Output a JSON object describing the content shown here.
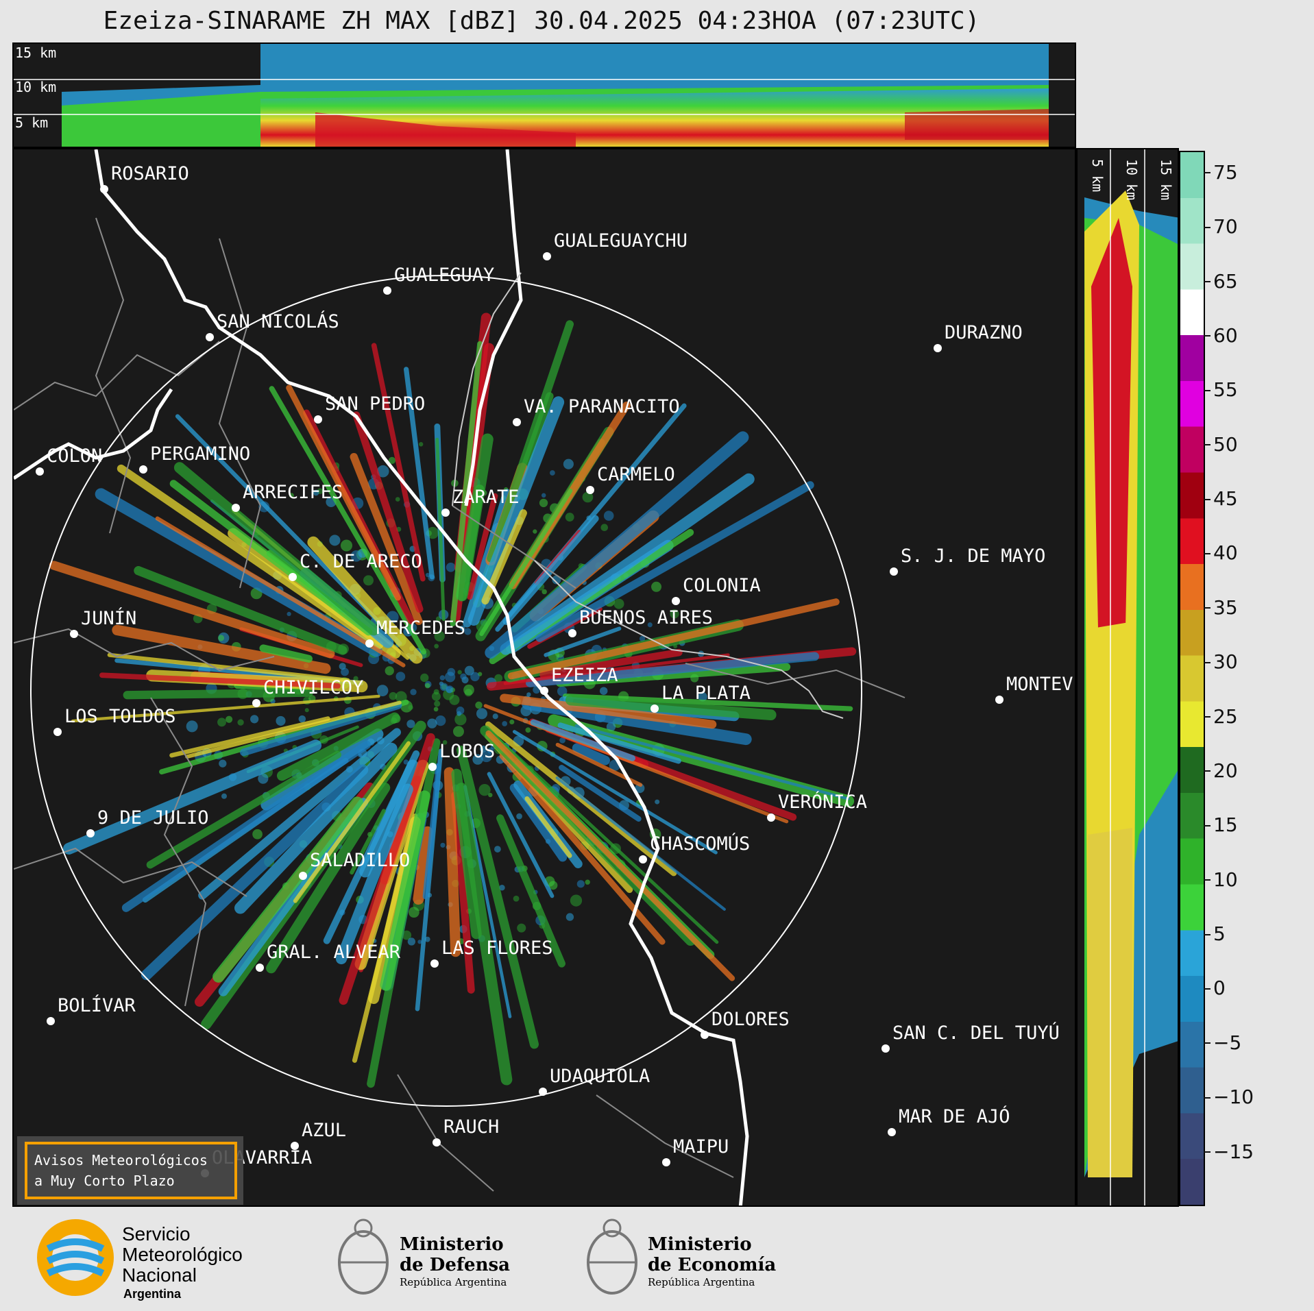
{
  "title": "Ezeiza-SINARAME ZH MAX [dBZ] 30.04.2025 04:23HOA (07:23UTC)",
  "top_panel": {
    "heights": [
      "15 km",
      "10 km",
      "5 km"
    ]
  },
  "side_panel": {
    "heights": [
      "5 km",
      "10 km",
      "15 km"
    ]
  },
  "colorbar": {
    "ticks": [
      "75",
      "70",
      "65",
      "60",
      "55",
      "50",
      "45",
      "40",
      "35",
      "30",
      "25",
      "20",
      "15",
      "10",
      "5",
      "0",
      "−5",
      "−10",
      "−15"
    ],
    "range": [
      -20,
      77
    ]
  },
  "cities": [
    {
      "name": "ROSARIO"
    },
    {
      "name": "GUALEGUAYCHU"
    },
    {
      "name": "GUALEGUAY"
    },
    {
      "name": "SAN NICOLÁS"
    },
    {
      "name": "DURAZNO"
    },
    {
      "name": "SAN PEDRO"
    },
    {
      "name": "VA. PARANACITO"
    },
    {
      "name": "COLON"
    },
    {
      "name": "PERGAMINO"
    },
    {
      "name": "CARMELO"
    },
    {
      "name": "ARRECIFES"
    },
    {
      "name": "ZÁRATE"
    },
    {
      "name": "C. DE ARECO"
    },
    {
      "name": "S. J. DE MAYO"
    },
    {
      "name": "COLONIA"
    },
    {
      "name": "JUNÍN"
    },
    {
      "name": "BUENOS AIRES"
    },
    {
      "name": "MERCEDES"
    },
    {
      "name": "EZEIZA"
    },
    {
      "name": "CHIVILCOY"
    },
    {
      "name": "MONTEV"
    },
    {
      "name": "LA PLATA"
    },
    {
      "name": "LOS TOLDOS"
    },
    {
      "name": "LOBOS"
    },
    {
      "name": "VERÓNICA"
    },
    {
      "name": "9 DE JULIO"
    },
    {
      "name": "CHASCOMÚS"
    },
    {
      "name": "SALADILLO"
    },
    {
      "name": "GRAL. ALVEAR"
    },
    {
      "name": "LAS FLORES"
    },
    {
      "name": "BOLÍVAR"
    },
    {
      "name": "DOLORES"
    },
    {
      "name": "SAN C. DEL TUYÚ"
    },
    {
      "name": "UDAQUIOLA"
    },
    {
      "name": "AZUL"
    },
    {
      "name": "RAUCH"
    },
    {
      "name": "MAR DE AJÓ"
    },
    {
      "name": "MAIPU"
    },
    {
      "name": "OLAVARRÍA"
    }
  ],
  "notice": {
    "line1": "Avisos Meteorológicos",
    "line2": "a Muy Corto Plazo"
  },
  "logos": {
    "smn": {
      "line1": "Servicio",
      "line2": "Meteorológico",
      "line3": "Nacional",
      "line4": "Argentina"
    },
    "defensa": {
      "line1": "Ministerio",
      "line2": "de Defensa",
      "line3": "República Argentina"
    },
    "economia": {
      "line1": "Ministerio",
      "line2": "de Economía",
      "line3": "República Argentina"
    }
  }
}
